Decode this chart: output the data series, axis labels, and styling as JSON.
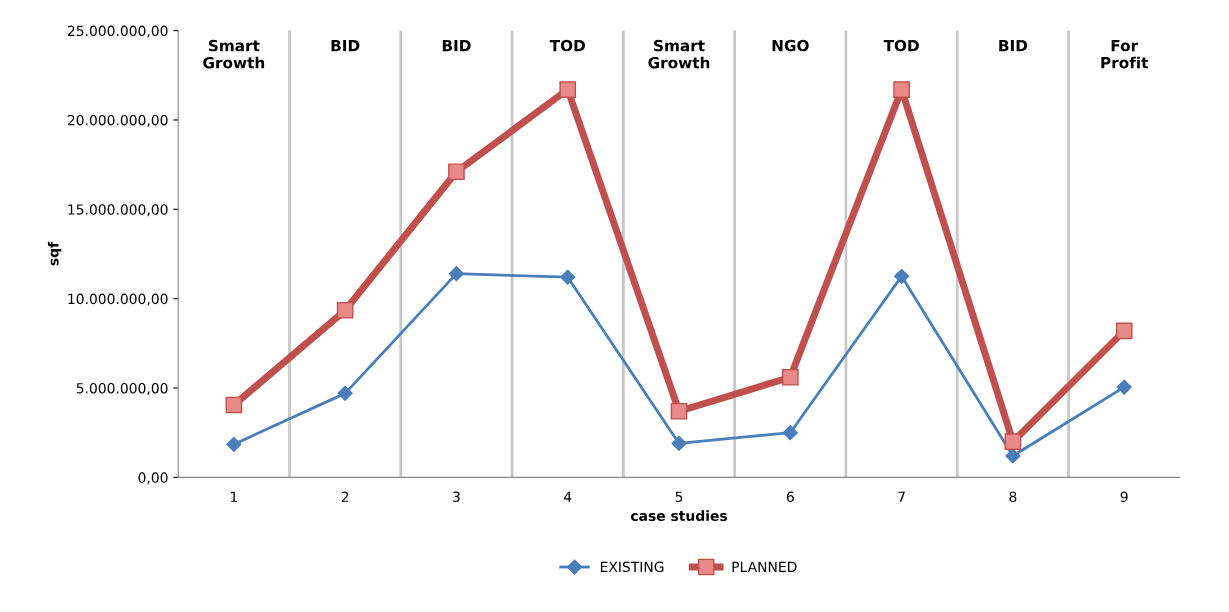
{
  "chart_data": {
    "type": "line",
    "xlabel": "case studies",
    "ylabel": "sqf",
    "categories": [
      "1",
      "2",
      "3",
      "4",
      "5",
      "6",
      "7",
      "8",
      "9"
    ],
    "series": [
      {
        "name": "EXISTING",
        "color": "#4a7ebb",
        "marker": "diamond",
        "values": [
          1850000,
          4700000,
          11400000,
          11200000,
          1900000,
          2500000,
          11250000,
          1200000,
          5050000
        ]
      },
      {
        "name": "PLANNED",
        "color": "#c0504d",
        "marker": "square",
        "values": [
          4050000,
          9350000,
          17100000,
          21700000,
          3700000,
          5600000,
          21700000,
          2000000,
          8200000
        ]
      }
    ],
    "ylim": [
      0,
      25000000
    ],
    "yticks": [
      {
        "value": 0,
        "label": "0,00"
      },
      {
        "value": 5000000,
        "label": "5.000.000,00"
      },
      {
        "value": 10000000,
        "label": "10.000.000,00"
      },
      {
        "value": 15000000,
        "label": "15.000.000,00"
      },
      {
        "value": 20000000,
        "label": "20.000.000,00"
      },
      {
        "value": 25000000,
        "label": "25.000.000,00"
      }
    ],
    "grid": "x",
    "legend": "bottom",
    "annotations": [
      "Smart\nGrowth",
      "BID",
      "BID",
      "TOD",
      "Smart\nGrowth",
      "NGO",
      "TOD",
      "BID",
      "For\nProfit"
    ]
  }
}
